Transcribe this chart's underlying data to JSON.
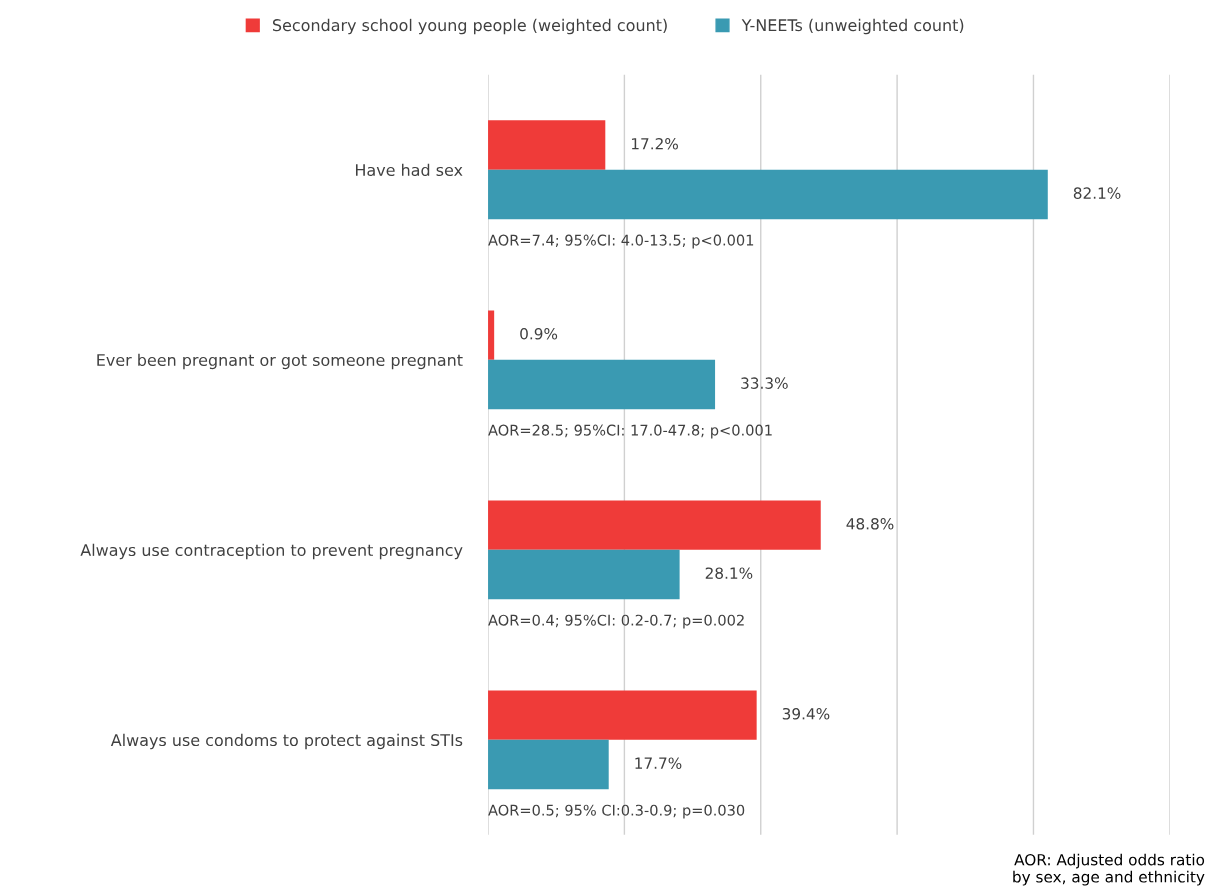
{
  "chart_data": {
    "type": "bar",
    "orientation": "horizontal",
    "categories": [
      "Have had sex",
      "Ever been pregnant or got someone pregnant",
      "Always use contraception to prevent pregnancy",
      "Always use condoms to protect against STIs"
    ],
    "series": [
      {
        "name": "Secondary school young people (weighted count)",
        "color": "#ef3b39",
        "values": [
          17.2,
          0.9,
          48.8,
          39.4
        ],
        "value_labels": [
          "17.2%",
          "0.9%",
          "48.8%",
          "39.4%"
        ]
      },
      {
        "name": "Y-NEETs (unweighted count)",
        "color": "#3a9ab2",
        "values": [
          82.1,
          33.3,
          28.1,
          17.7
        ],
        "value_labels": [
          "82.1%",
          "33.3%",
          "28.1%",
          "17.7%"
        ]
      }
    ],
    "xlim": [
      0,
      100
    ],
    "xticks": [
      {
        "value": 0,
        "label": null
      },
      {
        "value": 20,
        "label": null
      },
      {
        "value": 40,
        "label": null
      },
      {
        "value": 60,
        "label": null
      },
      {
        "value": 80,
        "label": null
      },
      {
        "value": 100,
        "label": null
      }
    ],
    "tick_labels": "y",
    "grid": "x",
    "legend": "top",
    "annotations": [
      "AOR=7.4; 95%CI: 4.0-13.5; p<0.001",
      "AOR=28.5; 95%CI: 17.0-47.8; p<0.001",
      "AOR=0.4; 95%CI: 0.2-0.7; p=0.002",
      "AOR=0.5; 95% CI:0.3-0.9; p=0.030",
      "AOR: Adjusted odds ratio\nby sex, age and ethnicity"
    ]
  }
}
